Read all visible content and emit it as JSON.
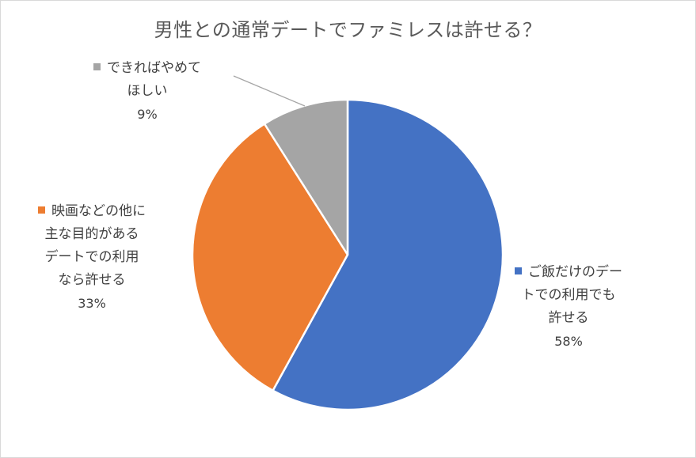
{
  "chart_data": {
    "type": "pie",
    "title": "男性との通常デートでファミレスは許せる？",
    "slices": [
      {
        "label_lines": [
          "ご飯だけのデー",
          "トでの利用でも",
          "許せる"
        ],
        "value": 58,
        "value_label": "58%",
        "color": "#4472c4"
      },
      {
        "label_lines": [
          "映画などの他に",
          "主な目的がある",
          "デートでの利用",
          "なら許せる"
        ],
        "value": 33,
        "value_label": "33%",
        "color": "#ed7d31"
      },
      {
        "label_lines": [
          "できればやめて",
          "ほしい"
        ],
        "value": 9,
        "value_label": "9%",
        "color": "#a5a5a5"
      }
    ],
    "start_angle_deg": 0,
    "direction": "clockwise",
    "legend": "none",
    "data_labels": "outside"
  }
}
